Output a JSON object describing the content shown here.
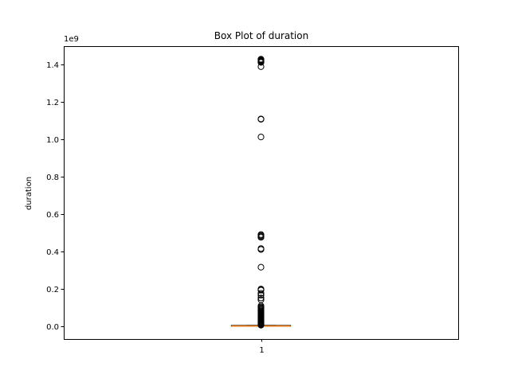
{
  "chart_data": {
    "type": "box",
    "title": "Box Plot of duration",
    "xlabel": "",
    "ylabel": "duration",
    "scale_label": "1e9",
    "categories": [
      "1"
    ],
    "ylim": [
      -0.07,
      1.5
    ],
    "yticks": [
      0.0,
      0.2,
      0.4,
      0.6,
      0.8,
      1.0,
      1.2,
      1.4
    ],
    "ytick_labels": [
      "0.0",
      "0.2",
      "0.4",
      "0.6",
      "0.8",
      "1.0",
      "1.2",
      "1.4"
    ],
    "grid": false,
    "colors": {
      "median": "#ff7f0e",
      "box": "#000000",
      "outlier": "#000000"
    },
    "boxes": [
      {
        "label": "1",
        "whisker_low": 0.0,
        "q1": 0.0,
        "median": 0.0,
        "q3": 0.001,
        "whisker_high": 0.003,
        "outliers": [
          1.43,
          1.428,
          1.425,
          1.422,
          1.419,
          1.416,
          1.413,
          1.39,
          1.11,
          1.108,
          1.013,
          0.49,
          0.485,
          0.48,
          0.475,
          0.415,
          0.41,
          0.315,
          0.198,
          0.195,
          0.192,
          0.175,
          0.165,
          0.15,
          0.14,
          0.108,
          0.102,
          0.097,
          0.092,
          0.087,
          0.082,
          0.077,
          0.072,
          0.068,
          0.064,
          0.06,
          0.056,
          0.052,
          0.048,
          0.044,
          0.04,
          0.036,
          0.032,
          0.028,
          0.024,
          0.02,
          0.016,
          0.012,
          0.009,
          0.006,
          0.004
        ]
      }
    ]
  }
}
